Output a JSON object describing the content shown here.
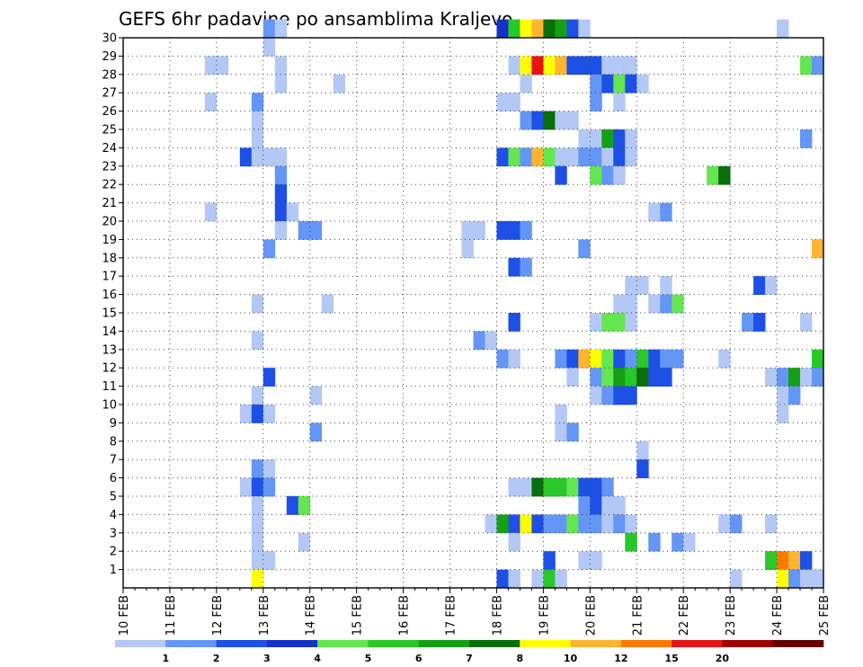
{
  "chart_data": {
    "type": "heatmap",
    "title": "GEFS 6hr padavine po ansamblima Kraljevo",
    "x_labels": [
      "10 FEB",
      "11 FEB",
      "12 FEB",
      "13 FEB",
      "14 FEB",
      "15 FEB",
      "16 FEB",
      "17 FEB",
      "18 FEB",
      "19 FEB",
      "20 FEB",
      "21 FEB",
      "22 FEB",
      "23 FEB",
      "24 FEB",
      "25 FEB"
    ],
    "y_labels": [
      "1",
      "2",
      "3",
      "4",
      "5",
      "6",
      "7",
      "8",
      "9",
      "10",
      "11",
      "12",
      "13",
      "14",
      "15",
      "16",
      "17",
      "18",
      "19",
      "20",
      "21",
      "22",
      "23",
      "24",
      "25",
      "26",
      "27",
      "28",
      "29",
      "30"
    ],
    "x_steps_per_day": 4,
    "y_min": 0,
    "y_max": 30,
    "grid": true,
    "legend": {
      "placement": "bottom",
      "boundaries": [
        "1",
        "2",
        "3",
        "4",
        "5",
        "6",
        "7",
        "8",
        "10",
        "12",
        "15",
        "20"
      ],
      "colors": [
        "#b4c8f5",
        "#6496f5",
        "#1e50e6",
        "#1432c8",
        "#64e650",
        "#28c828",
        "#14a014",
        "#0a6e0a",
        "#ffff00",
        "#ffb432",
        "#ff7800",
        "#e61414",
        "#a00000",
        "#640000"
      ]
    },
    "cells": [
      [
        12,
        30,
        1
      ],
      [
        13,
        30,
        0
      ],
      [
        32,
        30,
        3
      ],
      [
        33,
        30,
        5
      ],
      [
        34,
        30,
        8
      ],
      [
        35,
        30,
        9
      ],
      [
        36,
        30,
        7
      ],
      [
        37,
        30,
        6
      ],
      [
        38,
        30,
        2
      ],
      [
        39,
        30,
        0
      ],
      [
        56,
        30,
        0
      ],
      [
        12,
        29,
        0
      ],
      [
        7,
        28,
        0
      ],
      [
        8,
        28,
        0
      ],
      [
        13,
        28,
        0
      ],
      [
        33,
        28,
        0
      ],
      [
        34,
        28,
        8
      ],
      [
        35,
        28,
        11
      ],
      [
        36,
        28,
        8
      ],
      [
        37,
        28,
        9
      ],
      [
        38,
        28,
        2
      ],
      [
        39,
        28,
        2
      ],
      [
        40,
        28,
        2
      ],
      [
        41,
        28,
        0
      ],
      [
        42,
        28,
        0
      ],
      [
        43,
        28,
        0
      ],
      [
        58,
        28,
        4
      ],
      [
        59,
        28,
        1
      ],
      [
        13,
        27,
        0
      ],
      [
        18,
        27,
        0
      ],
      [
        34,
        27,
        0
      ],
      [
        40,
        27,
        1
      ],
      [
        41,
        27,
        2
      ],
      [
        42,
        27,
        4
      ],
      [
        43,
        27,
        2
      ],
      [
        44,
        27,
        0
      ],
      [
        7,
        26,
        0
      ],
      [
        11,
        26,
        1
      ],
      [
        32,
        26,
        0
      ],
      [
        33,
        26,
        0
      ],
      [
        40,
        26,
        1
      ],
      [
        42,
        26,
        0
      ],
      [
        11,
        25,
        0
      ],
      [
        34,
        25,
        1
      ],
      [
        35,
        25,
        2
      ],
      [
        36,
        25,
        7
      ],
      [
        37,
        25,
        0
      ],
      [
        38,
        25,
        0
      ],
      [
        11,
        24,
        0
      ],
      [
        39,
        24,
        0
      ],
      [
        40,
        24,
        0
      ],
      [
        41,
        24,
        6
      ],
      [
        42,
        24,
        2
      ],
      [
        43,
        24,
        0
      ],
      [
        58,
        24,
        1
      ],
      [
        10,
        23,
        2
      ],
      [
        11,
        23,
        0
      ],
      [
        12,
        23,
        0
      ],
      [
        13,
        23,
        0
      ],
      [
        32,
        23,
        2
      ],
      [
        33,
        23,
        4
      ],
      [
        34,
        23,
        1
      ],
      [
        35,
        23,
        9
      ],
      [
        36,
        23,
        4
      ],
      [
        37,
        23,
        0
      ],
      [
        38,
        23,
        0
      ],
      [
        39,
        23,
        1
      ],
      [
        40,
        23,
        1
      ],
      [
        41,
        23,
        0
      ],
      [
        42,
        23,
        2
      ],
      [
        43,
        23,
        0
      ],
      [
        13,
        22,
        1
      ],
      [
        37,
        22,
        2
      ],
      [
        40,
        22,
        4
      ],
      [
        41,
        22,
        1
      ],
      [
        42,
        22,
        0
      ],
      [
        50,
        22,
        4
      ],
      [
        51,
        22,
        7
      ],
      [
        13,
        21,
        2
      ],
      [
        13,
        20,
        2
      ],
      [
        14,
        20,
        0
      ],
      [
        7,
        20,
        0
      ],
      [
        45,
        20,
        0
      ],
      [
        46,
        20,
        1
      ],
      [
        13,
        19,
        0
      ],
      [
        15,
        19,
        1
      ],
      [
        16,
        19,
        1
      ],
      [
        29,
        19,
        0
      ],
      [
        30,
        19,
        0
      ],
      [
        32,
        19,
        2
      ],
      [
        33,
        19,
        2
      ],
      [
        34,
        19,
        1
      ],
      [
        12,
        18,
        1
      ],
      [
        29,
        18,
        0
      ],
      [
        39,
        18,
        1
      ],
      [
        59,
        18,
        9
      ],
      [
        33,
        17,
        2
      ],
      [
        34,
        17,
        1
      ],
      [
        43,
        16,
        0
      ],
      [
        44,
        16,
        0
      ],
      [
        46,
        16,
        0
      ],
      [
        54,
        16,
        2
      ],
      [
        55,
        16,
        0
      ],
      [
        11,
        15,
        0
      ],
      [
        17,
        15,
        0
      ],
      [
        42,
        15,
        0
      ],
      [
        43,
        15,
        0
      ],
      [
        45,
        15,
        0
      ],
      [
        46,
        15,
        1
      ],
      [
        47,
        15,
        4
      ],
      [
        33,
        14,
        2
      ],
      [
        40,
        14,
        0
      ],
      [
        41,
        14,
        4
      ],
      [
        42,
        14,
        4
      ],
      [
        43,
        14,
        0
      ],
      [
        53,
        14,
        1
      ],
      [
        54,
        14,
        2
      ],
      [
        58,
        14,
        0
      ],
      [
        11,
        13,
        0
      ],
      [
        30,
        13,
        1
      ],
      [
        31,
        13,
        0
      ],
      [
        32,
        12,
        1
      ],
      [
        33,
        12,
        0
      ],
      [
        37,
        12,
        1
      ],
      [
        38,
        12,
        2
      ],
      [
        39,
        12,
        9
      ],
      [
        40,
        12,
        8
      ],
      [
        41,
        12,
        4
      ],
      [
        42,
        12,
        2
      ],
      [
        43,
        12,
        1
      ],
      [
        44,
        12,
        5
      ],
      [
        45,
        12,
        2
      ],
      [
        46,
        12,
        1
      ],
      [
        47,
        12,
        1
      ],
      [
        51,
        12,
        0
      ],
      [
        59,
        12,
        5
      ],
      [
        12,
        11,
        2
      ],
      [
        38,
        11,
        0
      ],
      [
        40,
        11,
        1
      ],
      [
        41,
        11,
        4
      ],
      [
        42,
        11,
        6
      ],
      [
        43,
        11,
        5
      ],
      [
        44,
        11,
        7
      ],
      [
        45,
        11,
        2
      ],
      [
        46,
        11,
        2
      ],
      [
        55,
        11,
        0
      ],
      [
        56,
        11,
        1
      ],
      [
        57,
        11,
        6
      ],
      [
        58,
        11,
        0
      ],
      [
        59,
        11,
        1
      ],
      [
        11,
        10,
        0
      ],
      [
        16,
        10,
        0
      ],
      [
        40,
        10,
        0
      ],
      [
        41,
        10,
        1
      ],
      [
        42,
        10,
        2
      ],
      [
        43,
        10,
        2
      ],
      [
        56,
        10,
        0
      ],
      [
        57,
        10,
        1
      ],
      [
        10,
        9,
        0
      ],
      [
        11,
        9,
        2
      ],
      [
        12,
        9,
        0
      ],
      [
        37,
        9,
        0
      ],
      [
        56,
        9,
        0
      ],
      [
        16,
        8,
        1
      ],
      [
        37,
        8,
        0
      ],
      [
        38,
        8,
        1
      ],
      [
        44,
        7,
        0
      ],
      [
        11,
        6,
        1
      ],
      [
        12,
        6,
        0
      ],
      [
        44,
        6,
        2
      ],
      [
        10,
        5,
        0
      ],
      [
        11,
        5,
        2
      ],
      [
        12,
        5,
        1
      ],
      [
        33,
        5,
        0
      ],
      [
        34,
        5,
        0
      ],
      [
        35,
        5,
        7
      ],
      [
        36,
        5,
        5
      ],
      [
        37,
        5,
        5
      ],
      [
        38,
        5,
        4
      ],
      [
        39,
        5,
        2
      ],
      [
        40,
        5,
        2
      ],
      [
        41,
        5,
        1
      ],
      [
        11,
        4,
        0
      ],
      [
        14,
        4,
        2
      ],
      [
        15,
        4,
        4
      ],
      [
        39,
        4,
        1
      ],
      [
        40,
        4,
        2
      ],
      [
        41,
        4,
        0
      ],
      [
        42,
        4,
        0
      ],
      [
        11,
        3,
        0
      ],
      [
        31,
        3,
        0
      ],
      [
        32,
        3,
        6
      ],
      [
        33,
        3,
        2
      ],
      [
        34,
        3,
        8
      ],
      [
        35,
        3,
        2
      ],
      [
        36,
        3,
        1
      ],
      [
        37,
        3,
        1
      ],
      [
        38,
        3,
        4
      ],
      [
        39,
        3,
        1
      ],
      [
        40,
        3,
        1
      ],
      [
        41,
        3,
        0
      ],
      [
        42,
        3,
        1
      ],
      [
        43,
        3,
        0
      ],
      [
        51,
        3,
        0
      ],
      [
        52,
        3,
        1
      ],
      [
        55,
        3,
        0
      ],
      [
        11,
        2,
        0
      ],
      [
        15,
        2,
        0
      ],
      [
        33,
        2,
        0
      ],
      [
        43,
        2,
        5
      ],
      [
        45,
        2,
        1
      ],
      [
        47,
        2,
        1
      ],
      [
        48,
        2,
        0
      ],
      [
        11,
        1,
        0
      ],
      [
        12,
        1,
        0
      ],
      [
        36,
        1,
        2
      ],
      [
        39,
        1,
        0
      ],
      [
        40,
        1,
        0
      ],
      [
        55,
        1,
        5
      ],
      [
        56,
        1,
        10
      ],
      [
        57,
        1,
        9
      ],
      [
        58,
        1,
        2
      ],
      [
        11,
        0,
        8
      ],
      [
        32,
        0,
        2
      ],
      [
        33,
        0,
        0
      ],
      [
        35,
        0,
        0
      ],
      [
        36,
        0,
        5
      ],
      [
        37,
        0,
        0
      ],
      [
        52,
        0,
        0
      ],
      [
        56,
        0,
        8
      ],
      [
        57,
        0,
        1
      ],
      [
        58,
        0,
        0
      ],
      [
        59,
        0,
        0
      ]
    ]
  }
}
